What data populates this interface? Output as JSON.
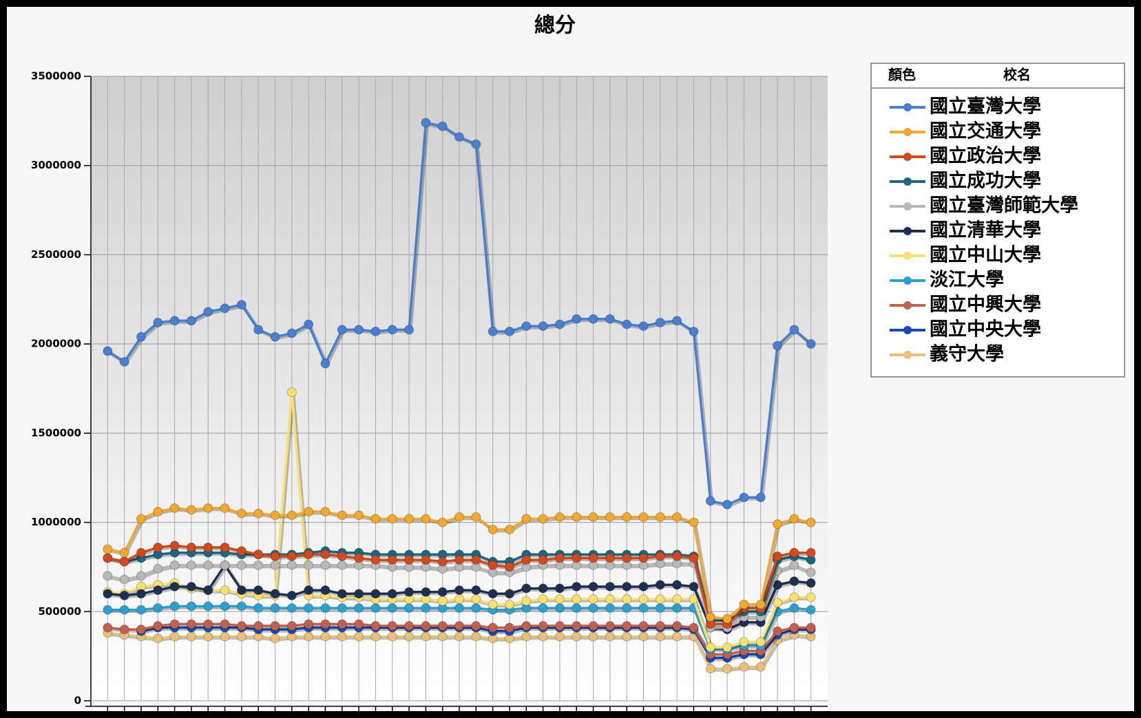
{
  "chart_data": {
    "type": "line",
    "title": "總分",
    "legend_title": [
      "顏色",
      "校名"
    ],
    "legend_position": "right",
    "grid": true,
    "categories": [
      null,
      null,
      null,
      null,
      null,
      null,
      null,
      null,
      null,
      null,
      null,
      null,
      null,
      null,
      null,
      null,
      null,
      null,
      null,
      null,
      null,
      null,
      null,
      null,
      null,
      null,
      null,
      null,
      null,
      null,
      null,
      null,
      null,
      null,
      null,
      null,
      null,
      null,
      null,
      null,
      null,
      null,
      null
    ],
    "ylim": [
      0,
      3500000
    ],
    "yticks": [
      0,
      500000,
      1000000,
      1500000,
      2000000,
      2500000,
      3000000,
      3500000
    ],
    "series": [
      {
        "name": "國立臺灣大學",
        "color": "#4a7fd0",
        "values": [
          1960000,
          1900000,
          2040000,
          2120000,
          2130000,
          2130000,
          2180000,
          2200000,
          2220000,
          2080000,
          2040000,
          2060000,
          2110000,
          1890000,
          2080000,
          2080000,
          2070000,
          2080000,
          2080000,
          3240000,
          3220000,
          3160000,
          3120000,
          2070000,
          2070000,
          2100000,
          2100000,
          2110000,
          2140000,
          2140000,
          2140000,
          2110000,
          2100000,
          2120000,
          2130000,
          2070000,
          1120000,
          1100000,
          1140000,
          1140000,
          1990000,
          2080000,
          2000000
        ]
      },
      {
        "name": "國立交通大學",
        "color": "#f0a830",
        "values": [
          850000,
          830000,
          1020000,
          1060000,
          1080000,
          1070000,
          1080000,
          1080000,
          1050000,
          1050000,
          1040000,
          1040000,
          1060000,
          1060000,
          1040000,
          1040000,
          1020000,
          1020000,
          1020000,
          1020000,
          1000000,
          1030000,
          1030000,
          960000,
          960000,
          1020000,
          1020000,
          1030000,
          1030000,
          1030000,
          1030000,
          1030000,
          1030000,
          1030000,
          1030000,
          1000000,
          470000,
          460000,
          540000,
          540000,
          990000,
          1020000,
          1000000
        ]
      },
      {
        "name": "國立政治大學",
        "color": "#d04a20",
        "values": [
          800000,
          780000,
          830000,
          860000,
          870000,
          860000,
          860000,
          860000,
          840000,
          820000,
          810000,
          810000,
          820000,
          820000,
          810000,
          800000,
          790000,
          790000,
          790000,
          790000,
          780000,
          790000,
          790000,
          760000,
          750000,
          790000,
          790000,
          800000,
          800000,
          800000,
          800000,
          800000,
          800000,
          810000,
          810000,
          800000,
          430000,
          430000,
          520000,
          520000,
          810000,
          830000,
          830000
        ]
      },
      {
        "name": "國立成功大學",
        "color": "#1e6680",
        "values": [
          800000,
          780000,
          800000,
          820000,
          830000,
          830000,
          830000,
          830000,
          820000,
          820000,
          820000,
          820000,
          830000,
          840000,
          830000,
          830000,
          820000,
          820000,
          820000,
          820000,
          820000,
          820000,
          820000,
          780000,
          780000,
          820000,
          820000,
          820000,
          820000,
          820000,
          820000,
          820000,
          820000,
          820000,
          820000,
          810000,
          450000,
          450000,
          500000,
          500000,
          790000,
          810000,
          790000
        ]
      },
      {
        "name": "國立臺灣師範大學",
        "color": "#b8b8b8",
        "values": [
          700000,
          680000,
          700000,
          740000,
          760000,
          760000,
          760000,
          760000,
          760000,
          760000,
          760000,
          760000,
          760000,
          760000,
          760000,
          760000,
          760000,
          750000,
          750000,
          750000,
          740000,
          750000,
          750000,
          720000,
          720000,
          750000,
          760000,
          760000,
          760000,
          760000,
          760000,
          760000,
          760000,
          770000,
          770000,
          770000,
          410000,
          410000,
          470000,
          470000,
          730000,
          760000,
          720000
        ]
      },
      {
        "name": "國立清華大學",
        "color": "#1e3050",
        "values": [
          600000,
          590000,
          600000,
          620000,
          640000,
          640000,
          620000,
          760000,
          620000,
          620000,
          600000,
          590000,
          620000,
          620000,
          600000,
          600000,
          600000,
          600000,
          610000,
          610000,
          610000,
          620000,
          620000,
          600000,
          600000,
          630000,
          630000,
          630000,
          640000,
          640000,
          640000,
          640000,
          640000,
          650000,
          650000,
          640000,
          410000,
          400000,
          440000,
          440000,
          650000,
          670000,
          660000
        ]
      },
      {
        "name": "國立中山大學",
        "color": "#f8e070",
        "values": [
          610000,
          600000,
          640000,
          650000,
          660000,
          630000,
          620000,
          620000,
          600000,
          590000,
          590000,
          1730000,
          590000,
          590000,
          580000,
          580000,
          570000,
          570000,
          570000,
          570000,
          560000,
          570000,
          570000,
          540000,
          540000,
          560000,
          570000,
          570000,
          570000,
          570000,
          570000,
          570000,
          570000,
          570000,
          570000,
          570000,
          300000,
          300000,
          330000,
          330000,
          550000,
          580000,
          580000
        ]
      },
      {
        "name": "淡江大學",
        "color": "#2ea0d0",
        "values": [
          510000,
          510000,
          510000,
          520000,
          530000,
          530000,
          530000,
          530000,
          530000,
          520000,
          520000,
          520000,
          520000,
          520000,
          520000,
          520000,
          520000,
          520000,
          520000,
          520000,
          520000,
          520000,
          520000,
          510000,
          510000,
          520000,
          520000,
          520000,
          520000,
          520000,
          520000,
          520000,
          520000,
          520000,
          520000,
          520000,
          290000,
          290000,
          310000,
          310000,
          500000,
          520000,
          510000
        ]
      },
      {
        "name": "國立中興大學",
        "color": "#c06050",
        "values": [
          410000,
          400000,
          400000,
          420000,
          430000,
          430000,
          430000,
          430000,
          420000,
          420000,
          420000,
          420000,
          430000,
          430000,
          430000,
          430000,
          420000,
          420000,
          420000,
          420000,
          420000,
          420000,
          420000,
          410000,
          410000,
          420000,
          420000,
          420000,
          420000,
          420000,
          420000,
          420000,
          420000,
          420000,
          420000,
          410000,
          260000,
          260000,
          280000,
          280000,
          390000,
          410000,
          410000
        ]
      },
      {
        "name": "國立中央大學",
        "color": "#1848b0",
        "values": [
          null,
          null,
          390000,
          410000,
          410000,
          410000,
          410000,
          410000,
          410000,
          400000,
          400000,
          400000,
          410000,
          410000,
          410000,
          410000,
          410000,
          410000,
          410000,
          410000,
          410000,
          410000,
          410000,
          390000,
          390000,
          410000,
          410000,
          410000,
          410000,
          410000,
          410000,
          410000,
          410000,
          410000,
          410000,
          400000,
          240000,
          240000,
          260000,
          260000,
          370000,
          400000,
          400000
        ]
      },
      {
        "name": "義守大學",
        "color": "#e8c078",
        "values": [
          380000,
          370000,
          360000,
          350000,
          360000,
          360000,
          360000,
          360000,
          360000,
          360000,
          350000,
          360000,
          360000,
          360000,
          360000,
          360000,
          360000,
          360000,
          360000,
          360000,
          360000,
          360000,
          360000,
          350000,
          350000,
          360000,
          360000,
          360000,
          360000,
          360000,
          360000,
          360000,
          360000,
          360000,
          360000,
          360000,
          180000,
          180000,
          190000,
          190000,
          340000,
          370000,
          360000
        ]
      }
    ]
  }
}
